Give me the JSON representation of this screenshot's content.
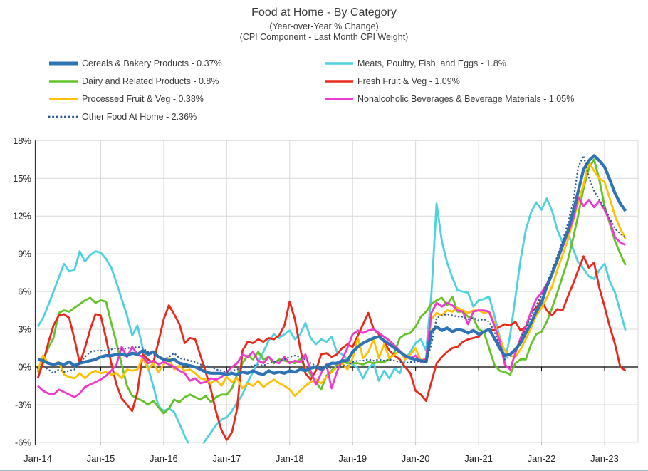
{
  "header": {
    "title": "Food at Home - By Category",
    "subtitle1": "(Year-over-Year % Change)",
    "subtitle2": "(CPI Component - Last Month CPI Weight)"
  },
  "footer": {
    "accent_line_color": "#8FBADC"
  },
  "chart_data": {
    "type": "line",
    "title": "Food at Home - By Category",
    "subtitle1": "(Year-over-Year % Change)",
    "subtitle2": "(CPI Component - Last Month CPI Weight)",
    "grid": true,
    "legend_position": "top-left, two columns",
    "x_axis": {
      "start": "Jan-2014",
      "end": "May-2023",
      "frequency": "monthly",
      "tick_labels": [
        "Jan-14",
        "Jan-15",
        "Jan-16",
        "Jan-17",
        "Jan-18",
        "Jan-19",
        "Jan-20",
        "Jan-21",
        "Jan-22",
        "Jan-23"
      ]
    },
    "y_axis": {
      "min": -6,
      "max": 18,
      "step": 3,
      "unit": "%",
      "tick_labels": [
        "18%",
        "15%",
        "12%",
        "9%",
        "6%",
        "3%",
        "0%",
        "-3%",
        "-6%"
      ]
    },
    "colors": {
      "gridline": "#D9D9D9",
      "zero_line": "#000000",
      "axis_line": "#333333",
      "text": "#3c3c3c"
    },
    "series": [
      {
        "key": "cereals",
        "name": "Cereals & Bakery Products",
        "cpi_weight": "0.37%",
        "legend_label": "Cereals & Bakery Products - 0.37%",
        "legend_column": "left",
        "legend_row": 1,
        "color": "#2E74B5",
        "line_style": "solid",
        "line_width": 4.2,
        "values": [
          0.6,
          0.5,
          0.3,
          0.2,
          0.3,
          0.2,
          0.4,
          0.1,
          0.3,
          0.4,
          0.5,
          0.6,
          0.8,
          0.9,
          0.9,
          1.0,
          1.0,
          0.9,
          1.1,
          1.0,
          1.3,
          1.0,
          1.2,
          0.8,
          0.6,
          0.5,
          0.6,
          0.3,
          0.2,
          0.1,
          0.0,
          -0.2,
          -0.4,
          -0.5,
          -0.5,
          -0.5,
          -0.6,
          -0.5,
          -0.6,
          -0.4,
          -0.5,
          -0.3,
          -0.5,
          -0.6,
          -0.3,
          -0.5,
          -0.4,
          -0.5,
          -0.3,
          -0.4,
          -0.2,
          -0.3,
          -0.1,
          0.0,
          -0.2,
          0.1,
          0.3,
          0.3,
          0.5,
          0.5,
          1.2,
          1.6,
          1.9,
          2.1,
          2.3,
          2.4,
          2.1,
          1.8,
          1.5,
          1.2,
          0.9,
          0.7,
          0.6,
          0.5,
          0.4,
          2.8,
          3.2,
          2.9,
          3.1,
          2.8,
          3.0,
          2.9,
          2.7,
          2.9,
          2.6,
          2.8,
          3.0,
          2.3,
          1.5,
          0.9,
          1.0,
          1.4,
          1.9,
          2.7,
          3.5,
          4.4,
          5.1,
          6.4,
          7.4,
          8.5,
          9.7,
          10.8,
          12.3,
          14.0,
          15.7,
          16.4,
          16.8,
          16.4,
          15.9,
          14.9,
          13.8,
          13.0,
          12.4
        ]
      },
      {
        "key": "meats",
        "name": "Meats, Poultry, Fish, and Eggs",
        "cpi_weight": "1.8%",
        "legend_label": "Meats, Poultry, Fish, and Eggs - 1.8%",
        "legend_column": "right",
        "legend_row": 1,
        "color": "#4FD1E0",
        "line_style": "solid",
        "line_width": 2.8,
        "values": [
          3.2,
          3.9,
          4.9,
          6.0,
          7.1,
          8.2,
          7.6,
          7.7,
          9.2,
          8.4,
          8.9,
          9.2,
          9.1,
          8.6,
          7.9,
          6.7,
          5.4,
          4.1,
          2.5,
          3.3,
          1.5,
          0.0,
          -1.5,
          -3.1,
          -3.5,
          -3.3,
          -3.6,
          -4.5,
          -5.5,
          -6.3,
          -6.6,
          -6.5,
          -5.8,
          -5.2,
          -4.6,
          -4.2,
          -4.0,
          -3.5,
          -2.8,
          -2.2,
          -1.2,
          -0.4,
          0.4,
          1.2,
          2.1,
          2.6,
          2.3,
          2.6,
          2.9,
          2.2,
          2.6,
          3.5,
          2.3,
          1.8,
          2.2,
          2.0,
          2.4,
          1.2,
          1.0,
          0.6,
          0.2,
          -0.1,
          -0.9,
          -0.1,
          0.3,
          -1.1,
          -0.3,
          -0.9,
          -0.1,
          -0.5,
          0.6,
          1.2,
          1.9,
          2.2,
          1.3,
          5.8,
          13.0,
          10.0,
          8.3,
          7.1,
          6.1,
          6.0,
          5.9,
          4.8,
          5.3,
          5.4,
          5.6,
          4.1,
          2.4,
          0.4,
          2.5,
          5.5,
          8.5,
          10.9,
          12.3,
          13.1,
          12.5,
          13.4,
          12.4,
          10.9,
          9.9,
          10.8,
          9.4,
          8.3,
          7.8,
          7.2,
          7.0,
          7.7,
          8.2,
          6.8,
          5.9,
          4.4,
          2.9
        ]
      },
      {
        "key": "dairy",
        "name": "Dairy and Related Products",
        "cpi_weight": "0.8%",
        "legend_label": "Dairy and Related Products - 0.8%",
        "legend_column": "left",
        "legend_row": 2,
        "color": "#63C328",
        "line_style": "solid",
        "line_width": 2.8,
        "values": [
          -0.4,
          0.5,
          1.5,
          2.3,
          4.3,
          4.5,
          4.4,
          4.7,
          5.0,
          5.3,
          5.5,
          5.1,
          5.3,
          5.2,
          3.5,
          1.9,
          0.2,
          -1.5,
          -2.3,
          -2.5,
          -2.7,
          -3.0,
          -2.7,
          -3.2,
          -3.7,
          -3.3,
          -2.6,
          -2.8,
          -2.4,
          -2.2,
          -2.4,
          -2.6,
          -2.3,
          -2.8,
          -2.4,
          -2.2,
          -2.2,
          -1.7,
          -0.6,
          0.3,
          0.9,
          0.6,
          1.2,
          0.6,
          0.8,
          0.3,
          0.6,
          0.5,
          0.4,
          0.3,
          0.6,
          0.0,
          -0.6,
          -1.2,
          -1.8,
          -0.7,
          -0.3,
          0.2,
          0.4,
          0.3,
          0.3,
          0.3,
          0.2,
          0.4,
          0.3,
          0.4,
          0.4,
          0.6,
          1.2,
          2.3,
          2.6,
          2.7,
          3.2,
          4.0,
          4.4,
          5.0,
          5.3,
          5.5,
          4.9,
          5.6,
          4.4,
          4.4,
          4.0,
          3.9,
          3.0,
          2.8,
          1.5,
          0.2,
          -0.3,
          -0.4,
          -0.6,
          0.3,
          0.6,
          0.6,
          1.8,
          2.6,
          2.8,
          3.6,
          4.7,
          5.9,
          7.2,
          8.5,
          10.2,
          12.1,
          14.2,
          15.8,
          16.5,
          14.9,
          12.8,
          11.4,
          10.0,
          9.0,
          8.1
        ]
      },
      {
        "key": "freshfv",
        "name": "Fresh Fruit & Veg",
        "cpi_weight": "1.09%",
        "legend_label": "Fresh Fruit & Veg - 1.09%",
        "legend_column": "right",
        "legend_row": 2,
        "color": "#E8291C",
        "line_style": "solid",
        "line_width": 2.8,
        "values": [
          -0.9,
          0.3,
          1.9,
          3.3,
          4.1,
          4.2,
          3.9,
          2.2,
          0.3,
          1.5,
          3.0,
          4.2,
          4.1,
          2.3,
          0.3,
          -1.4,
          -2.5,
          -3.0,
          -3.5,
          -2.0,
          1.0,
          0.6,
          0.3,
          2.0,
          3.8,
          4.9,
          4.2,
          3.4,
          1.9,
          2.3,
          2.2,
          0.9,
          -0.4,
          -1.8,
          -3.6,
          -5.0,
          -5.8,
          -5.2,
          -3.3,
          1.3,
          2.0,
          1.9,
          2.2,
          2.0,
          2.3,
          2.2,
          2.5,
          3.3,
          5.2,
          3.8,
          1.5,
          -0.5,
          -1.0,
          -0.3,
          1.0,
          1.1,
          0.8,
          1.0,
          1.5,
          1.8,
          1.6,
          2.5,
          3.4,
          4.3,
          3.0,
          2.6,
          2.0,
          1.3,
          0.9,
          0.6,
          0.0,
          -0.5,
          -1.9,
          -2.2,
          -2.7,
          -1.2,
          0.3,
          0.8,
          1.2,
          1.5,
          1.6,
          2.0,
          2.2,
          2.3,
          2.4,
          2.8,
          3.0,
          2.9,
          3.2,
          3.4,
          3.3,
          3.6,
          2.9,
          3.2,
          4.4,
          4.7,
          5.3,
          4.5,
          4.1,
          4.6,
          4.5,
          5.6,
          6.6,
          7.7,
          8.8,
          7.9,
          8.3,
          6.3,
          4.8,
          3.2,
          1.8,
          0.0,
          -0.3
        ]
      },
      {
        "key": "processedfv",
        "name": "Processed Fruit & Veg",
        "cpi_weight": "0.38%",
        "legend_label": "Processed Fruit & Veg - 0.38%",
        "legend_column": "left",
        "legend_row": 3,
        "color": "#FFC000",
        "line_style": "solid",
        "line_width": 2.8,
        "values": [
          -0.3,
          0.9,
          0.3,
          0.2,
          0.4,
          -0.6,
          -0.8,
          -0.9,
          -0.5,
          -0.9,
          -0.5,
          -0.3,
          -0.5,
          -0.4,
          -0.6,
          -0.5,
          -0.9,
          -0.2,
          -0.3,
          -0.2,
          0.8,
          -0.2,
          0.3,
          -0.4,
          0.2,
          0.7,
          -0.2,
          0.1,
          -0.3,
          -0.2,
          -0.5,
          -0.9,
          -1.0,
          -1.3,
          -1.0,
          -1.5,
          -0.8,
          -1.2,
          -0.9,
          -1.7,
          -1.3,
          -1.5,
          -1.1,
          -1.6,
          -1.3,
          -1.0,
          -1.3,
          -1.5,
          -1.8,
          -2.3,
          -1.9,
          -1.5,
          -1.2,
          -1.0,
          -1.3,
          -0.8,
          -0.4,
          0.0,
          0.3,
          -0.2,
          0.7,
          2.3,
          0.7,
          1.2,
          2.2,
          0.7,
          1.8,
          0.7,
          1.0,
          1.3,
          0.6,
          1.0,
          1.5,
          0.5,
          0.7,
          3.8,
          4.3,
          4.1,
          4.5,
          4.4,
          4.7,
          4.5,
          4.3,
          4.5,
          4.5,
          4.3,
          4.4,
          3.5,
          2.3,
          1.3,
          0.9,
          0.8,
          1.4,
          2.2,
          3.1,
          4.1,
          4.7,
          5.5,
          6.4,
          7.7,
          8.9,
          10.1,
          11.6,
          13.1,
          14.5,
          16.3,
          15.6,
          15.0,
          14.7,
          13.4,
          12.0,
          11.0,
          10.2
        ]
      },
      {
        "key": "nonalc",
        "name": "Nonalcoholic Beverages & Beverage Materials",
        "cpi_weight": "1.05%",
        "legend_label": "Nonalcoholic Beverages & Beverage Materials - 1.05%",
        "legend_column": "right",
        "legend_row": 3,
        "color": "#F03ACD",
        "line_style": "solid",
        "line_width": 2.8,
        "values": [
          -1.5,
          -1.9,
          -2.1,
          -2.2,
          -1.8,
          -2.0,
          -2.2,
          -2.4,
          -2.1,
          -1.6,
          -1.4,
          -1.2,
          -1.0,
          -0.7,
          -0.3,
          0.2,
          1.6,
          0.8,
          1.6,
          1.0,
          0.8,
          0.3,
          0.5,
          0.2,
          0.4,
          0.2,
          0.0,
          -0.3,
          -0.5,
          -1.1,
          -0.9,
          -1.3,
          -1.2,
          -0.9,
          -1.0,
          -0.8,
          -0.4,
          0.0,
          0.3,
          1.0,
          0.8,
          1.2,
          0.5,
          0.3,
          0.8,
          0.4,
          0.3,
          0.8,
          0.3,
          0.5,
          0.4,
          1.0,
          -0.3,
          -1.4,
          -0.5,
          0.2,
          -1.7,
          -0.4,
          0.6,
          1.5,
          2.6,
          2.9,
          2.7,
          2.9,
          3.0,
          2.7,
          2.4,
          2.1,
          1.7,
          1.3,
          0.8,
          0.7,
          0.9,
          0.4,
          0.7,
          4.3,
          5.1,
          4.8,
          5.1,
          4.9,
          4.5,
          4.4,
          3.4,
          4.4,
          4.5,
          4.5,
          4.4,
          3.3,
          2.1,
          0.2,
          -0.2,
          1.1,
          2.3,
          3.2,
          4.4,
          5.4,
          5.9,
          6.6,
          7.4,
          8.4,
          9.5,
          10.6,
          11.7,
          13.5,
          12.8,
          13.3,
          12.7,
          13.2,
          12.5,
          11.6,
          10.3,
          9.9,
          9.7
        ]
      },
      {
        "key": "otherfood",
        "name": "Other Food At Home",
        "cpi_weight": "2.36%",
        "legend_label": "Other Food At Home - 2.36%",
        "legend_column": "left",
        "legend_row": 4,
        "color": "#2F5B93",
        "line_style": "dotted",
        "line_width": 2.4,
        "values": [
          -0.1,
          0.1,
          -0.2,
          -0.5,
          -0.2,
          -0.4,
          -0.3,
          -0.2,
          0.3,
          0.8,
          1.2,
          1.3,
          1.3,
          1.3,
          1.4,
          1.5,
          1.4,
          1.5,
          1.5,
          1.6,
          1.5,
          1.2,
          1.0,
          0.8,
          0.6,
          0.8,
          1.1,
          0.7,
          0.6,
          0.5,
          0.4,
          0.2,
          0.1,
          0.0,
          -0.2,
          -0.3,
          -0.4,
          -0.3,
          -0.2,
          -0.1,
          0.0,
          0.1,
          0.2,
          0.1,
          0.3,
          0.4,
          0.5,
          0.6,
          0.8,
          0.9,
          0.8,
          0.6,
          0.3,
          0.1,
          0.0,
          -0.1,
          -0.1,
          0.0,
          0.1,
          0.1,
          0.4,
          0.5,
          0.5,
          0.6,
          0.5,
          0.6,
          0.5,
          0.6,
          0.5,
          0.4,
          0.3,
          0.4,
          0.4,
          0.5,
          0.4,
          1.8,
          3.9,
          4.1,
          4.2,
          4.1,
          4.0,
          4.0,
          3.8,
          3.9,
          3.7,
          3.8,
          3.6,
          2.8,
          1.8,
          0.6,
          0.8,
          1.3,
          2.2,
          3.1,
          4.0,
          4.9,
          5.7,
          6.6,
          7.7,
          8.8,
          10.0,
          11.4,
          13.1,
          15.9,
          16.8,
          15.1,
          14.0,
          13.3,
          12.7,
          11.8,
          11.0,
          10.6,
          10.3
        ]
      }
    ]
  }
}
